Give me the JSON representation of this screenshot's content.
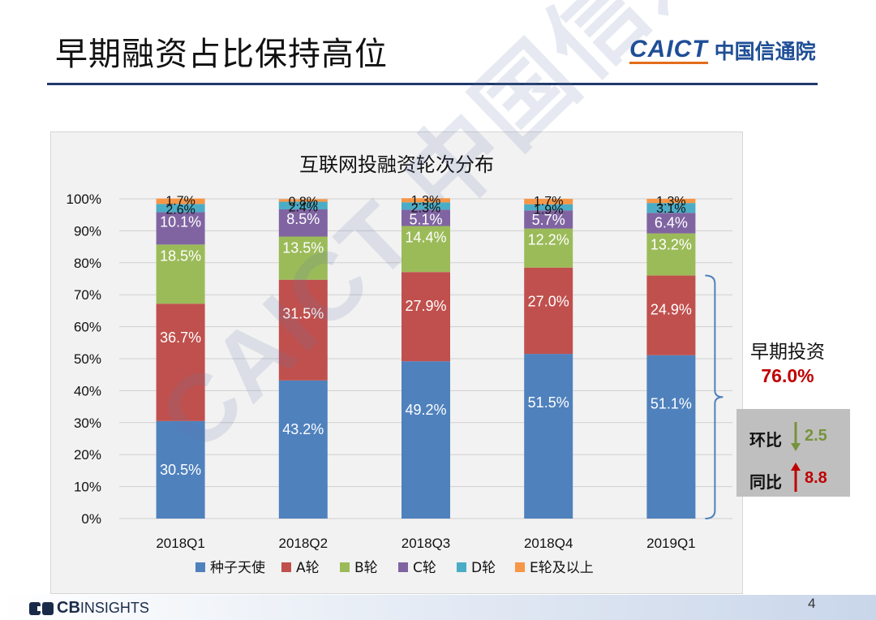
{
  "slide": {
    "title": "早期融资占比保持高位",
    "page_number": "4"
  },
  "logos": {
    "caict_latin": "CAICT",
    "caict_cn": "中国信通院",
    "footer_brand_bold": "CB",
    "footer_brand_rest": "INSIGHTS",
    "watermark_text": "CAICT 中国信通院"
  },
  "callout": {
    "label": "早期投资",
    "value": "76.0%"
  },
  "comparison": {
    "mom_label": "环比",
    "mom_value": "2.5",
    "mom_direction": "down",
    "yoy_label": "同比",
    "yoy_value": "8.8",
    "yoy_direction": "up"
  },
  "colors": {
    "seed": "#4f81bd",
    "a": "#c0504d",
    "b": "#9bbb59",
    "c": "#8064a2",
    "d": "#4bacc6",
    "e": "#f79646",
    "mom_green": "#77933c",
    "yoy_red": "#c00000",
    "accent_blue": "#1f4e96"
  },
  "chart_data": {
    "type": "bar",
    "stacked": true,
    "percent": true,
    "title": "互联网投融资轮次分布",
    "categories": [
      "2018Q1",
      "2018Q2",
      "2018Q3",
      "2018Q4",
      "2019Q1"
    ],
    "y_ticks": [
      "0%",
      "10%",
      "20%",
      "30%",
      "40%",
      "50%",
      "60%",
      "70%",
      "80%",
      "90%",
      "100%"
    ],
    "ylim": [
      0,
      100
    ],
    "grid": true,
    "legend_position": "bottom",
    "series": [
      {
        "name": "种子天使",
        "color": "#4f81bd",
        "values": [
          30.5,
          43.2,
          49.2,
          51.5,
          51.1
        ],
        "labels": [
          "30.5%",
          "43.2%",
          "49.2%",
          "51.5%",
          "51.1%"
        ]
      },
      {
        "name": "A轮",
        "color": "#c0504d",
        "values": [
          36.7,
          31.5,
          27.9,
          27.0,
          24.9
        ],
        "labels": [
          "36.7%",
          "31.5%",
          "27.9%",
          "27.0%",
          "24.9%"
        ]
      },
      {
        "name": "B轮",
        "color": "#9bbb59",
        "values": [
          18.5,
          13.5,
          14.4,
          12.2,
          13.2
        ],
        "labels": [
          "18.5%",
          "13.5%",
          "14.4%",
          "12.2%",
          "13.2%"
        ]
      },
      {
        "name": "C轮",
        "color": "#8064a2",
        "values": [
          10.1,
          8.5,
          5.1,
          5.7,
          6.4
        ],
        "labels": [
          "10.1%",
          "8.5%",
          "5.1%",
          "5.7%",
          "6.4%"
        ]
      },
      {
        "name": "D轮",
        "color": "#4bacc6",
        "values": [
          2.6,
          2.4,
          2.3,
          1.9,
          3.1
        ],
        "labels": [
          "2.6%",
          "2.4%",
          "2.3%",
          "1.9%",
          "3.1%"
        ]
      },
      {
        "name": "E轮及以上",
        "color": "#f79646",
        "values": [
          1.7,
          0.8,
          1.3,
          1.7,
          1.3
        ],
        "labels": [
          "1.7%",
          "0.8%",
          "1.3%",
          "1.7%",
          "1.3%"
        ]
      }
    ]
  }
}
